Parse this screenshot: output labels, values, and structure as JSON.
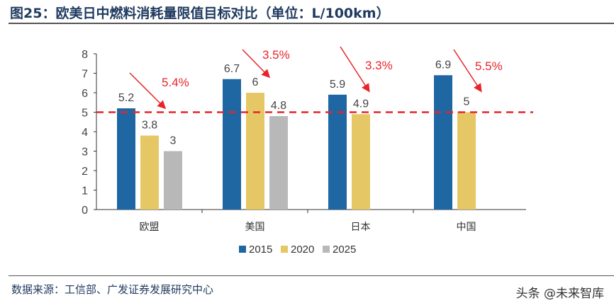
{
  "title": "图25：欧美日中燃料消耗量限值目标对比（单位：L/100km）",
  "source": "数据来源：工信部、广发证券发展研究中心",
  "watermark": "头条 @未来智库",
  "chart_data": {
    "type": "bar",
    "categories": [
      "欧盟",
      "美国",
      "日本",
      "中国"
    ],
    "series": [
      {
        "name": "2015",
        "color": "#1f67a3",
        "values": [
          5.2,
          6.7,
          5.9,
          6.9
        ]
      },
      {
        "name": "2020",
        "color": "#e5c865",
        "values": [
          3.8,
          6,
          4.9,
          5
        ]
      },
      {
        "name": "2025",
        "color": "#b8b8b8",
        "values": [
          3,
          4.8,
          null,
          null
        ]
      }
    ],
    "ylim": [
      0,
      8
    ],
    "yticks": [
      0,
      1,
      2,
      3,
      4,
      5,
      6,
      7,
      8
    ],
    "reference_line": {
      "value": 5,
      "color": "#e8242a",
      "style": "dashed"
    },
    "annotations": [
      {
        "category": "欧盟",
        "text": "5.4%",
        "color": "#e8242a"
      },
      {
        "category": "美国",
        "text": "3.5%",
        "color": "#e8242a"
      },
      {
        "category": "日本",
        "text": "3.3%",
        "color": "#e8242a"
      },
      {
        "category": "中国",
        "text": "5.5%",
        "color": "#e8242a"
      }
    ],
    "legend": "bottom",
    "grid": false
  }
}
